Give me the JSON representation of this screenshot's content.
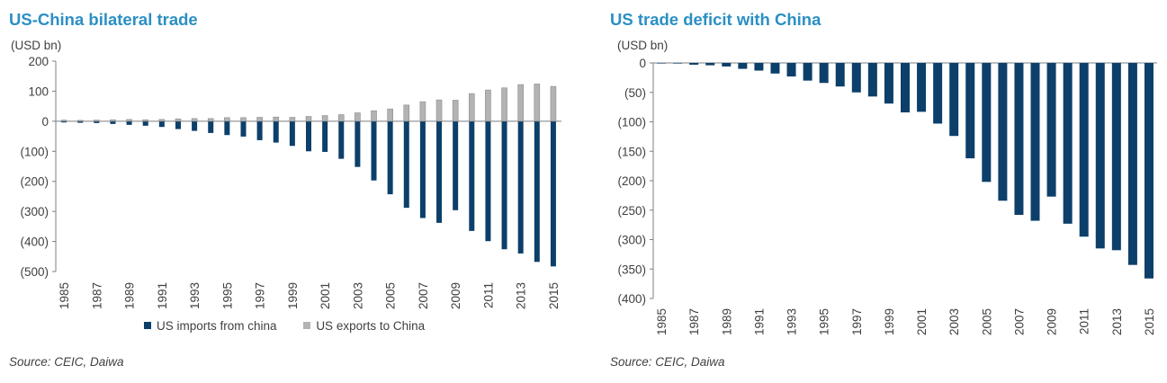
{
  "colors": {
    "title": "#2b8fc4",
    "imports": "#0d3f6b",
    "exports": "#b3b3b3",
    "deficit": "#0d3f6b",
    "axis": "#7f7f7f"
  },
  "left": {
    "title": "US-China bilateral trade",
    "unit": "(USD bn)",
    "source": "Source: CEIC, Daiwa",
    "legend": [
      "US imports from china",
      "US exports to China"
    ]
  },
  "right": {
    "title": "US trade deficit with China",
    "unit": "(USD bn)",
    "source": "Source: CEIC, Daiwa"
  },
  "chart_data": [
    {
      "type": "bar",
      "title": "US-China bilateral trade",
      "ylabel": "(USD bn)",
      "ylim": [
        -500,
        200
      ],
      "yticks": [
        200,
        100,
        0,
        -100,
        -200,
        -300,
        -400,
        -500
      ],
      "ytick_labels": [
        "200",
        "100",
        "0",
        "(100)",
        "(200)",
        "(300)",
        "(400)",
        "(500)"
      ],
      "xtick_labels": [
        "1985",
        "1987",
        "1989",
        "1991",
        "1993",
        "1995",
        "1997",
        "1999",
        "2001",
        "2003",
        "2005",
        "2007",
        "2009",
        "2011",
        "2013",
        "2015"
      ],
      "categories": [
        "1985",
        "1986",
        "1987",
        "1988",
        "1989",
        "1990",
        "1991",
        "1992",
        "1993",
        "1994",
        "1995",
        "1996",
        "1997",
        "1998",
        "1999",
        "2000",
        "2001",
        "2002",
        "2003",
        "2004",
        "2005",
        "2006",
        "2007",
        "2008",
        "2009",
        "2010",
        "2011",
        "2012",
        "2013",
        "2014",
        "2015"
      ],
      "series": [
        {
          "name": "US imports from china",
          "values": [
            -4,
            -5,
            -6,
            -9,
            -12,
            -15,
            -19,
            -26,
            -32,
            -39,
            -46,
            -51,
            -63,
            -71,
            -82,
            -100,
            -102,
            -125,
            -152,
            -197,
            -243,
            -288,
            -322,
            -338,
            -296,
            -365,
            -399,
            -426,
            -440,
            -468,
            -483
          ]
        },
        {
          "name": "US exports to China",
          "values": [
            4,
            3,
            4,
            5,
            6,
            5,
            6,
            8,
            9,
            9,
            12,
            12,
            13,
            14,
            13,
            16,
            19,
            22,
            28,
            35,
            41,
            54,
            65,
            71,
            70,
            92,
            104,
            111,
            122,
            124,
            116
          ]
        }
      ],
      "legend": "bottom"
    },
    {
      "type": "bar",
      "title": "US trade deficit with China",
      "ylabel": "(USD bn)",
      "ylim": [
        -400,
        0
      ],
      "yticks": [
        0,
        -50,
        -100,
        -150,
        -200,
        -250,
        -300,
        -350,
        -400
      ],
      "ytick_labels": [
        "0",
        "(50)",
        "(100)",
        "(150)",
        "(200)",
        "(250)",
        "(300)",
        "(350)",
        "(400)"
      ],
      "xtick_labels": [
        "1985",
        "1987",
        "1989",
        "1991",
        "1993",
        "1995",
        "1997",
        "1999",
        "2001",
        "2003",
        "2005",
        "2007",
        "2009",
        "2011",
        "2013",
        "2015"
      ],
      "categories": [
        "1985",
        "1986",
        "1987",
        "1988",
        "1989",
        "1990",
        "1991",
        "1992",
        "1993",
        "1994",
        "1995",
        "1996",
        "1997",
        "1998",
        "1999",
        "2000",
        "2001",
        "2002",
        "2003",
        "2004",
        "2005",
        "2006",
        "2007",
        "2008",
        "2009",
        "2010",
        "2011",
        "2012",
        "2013",
        "2014",
        "2015"
      ],
      "series": [
        {
          "name": "US trade deficit with China",
          "values": [
            0,
            -1,
            -3,
            -4,
            -6,
            -10,
            -13,
            -18,
            -23,
            -30,
            -34,
            -40,
            -50,
            -57,
            -69,
            -84,
            -83,
            -103,
            -124,
            -162,
            -202,
            -234,
            -258,
            -268,
            -227,
            -273,
            -295,
            -315,
            -318,
            -343,
            -366
          ]
        }
      ]
    }
  ]
}
